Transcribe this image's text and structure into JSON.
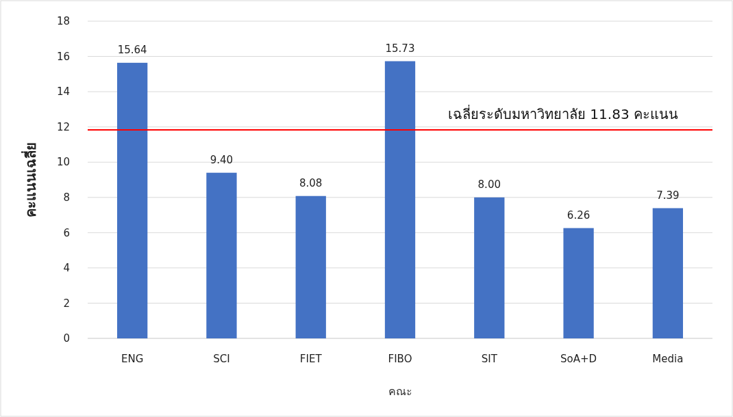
{
  "chart_data": {
    "type": "bar",
    "xlabel": "คณะ",
    "ylabel": "คะแนนเฉลี่ย",
    "categories": [
      "ENG",
      "SCI",
      "FIET",
      "FIBO",
      "SIT",
      "SoA+D",
      "Media"
    ],
    "values": [
      15.64,
      9.4,
      8.08,
      15.73,
      8.0,
      6.26,
      7.39
    ],
    "value_labels": [
      "15.64",
      "9.40",
      "8.08",
      "15.73",
      "8.00",
      "6.26",
      "7.39"
    ],
    "color": "#4472c4",
    "ylim": [
      0,
      18
    ],
    "yticks": [
      0,
      2,
      4,
      6,
      8,
      10,
      12,
      14,
      16,
      18
    ],
    "grid": "y",
    "ref_lines": [
      {
        "axis": "y",
        "value": 11.83,
        "label": "เฉลี่ยระดับมหาวิทยาลัย 11.83 คะแนน",
        "color": "#ff0000"
      }
    ]
  }
}
